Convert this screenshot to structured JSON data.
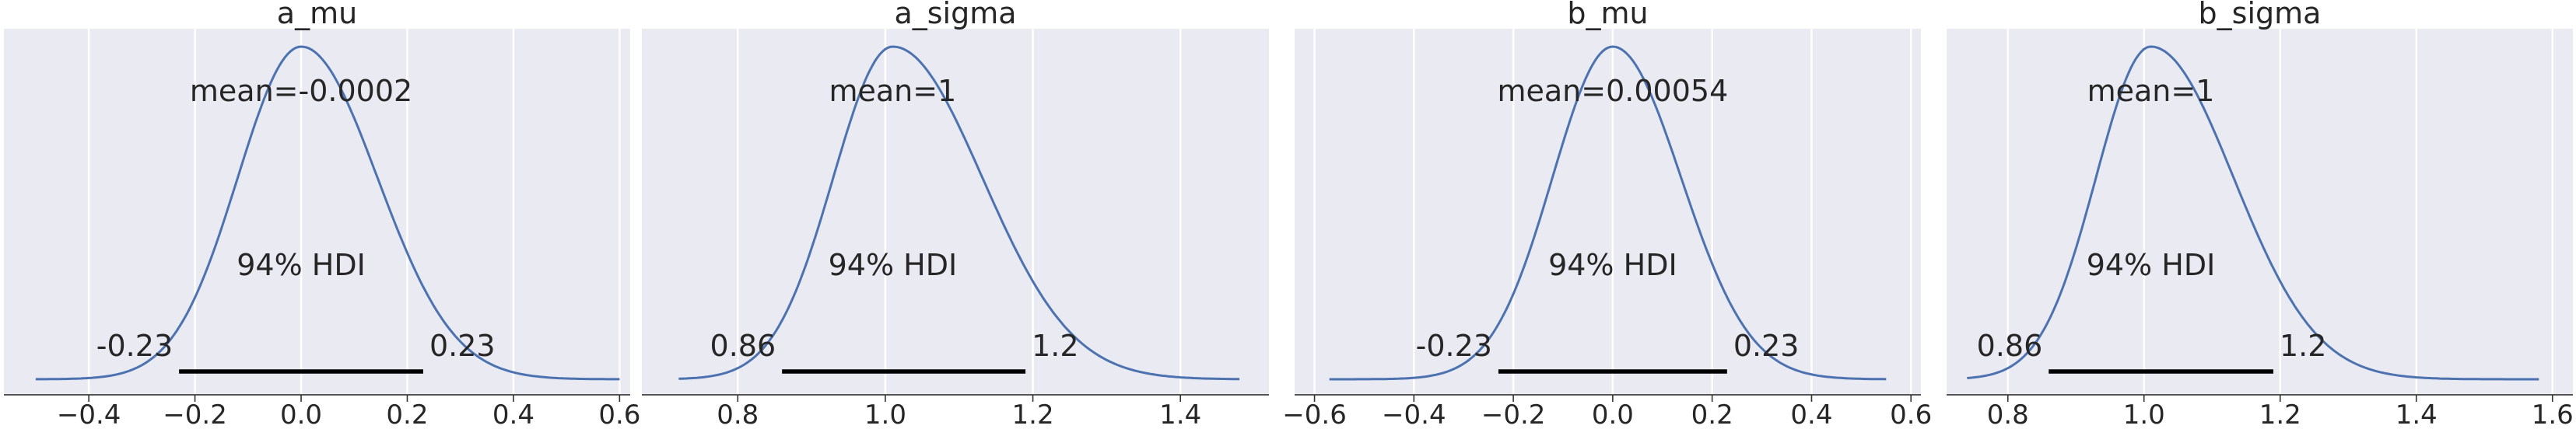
{
  "chart_data": [
    {
      "type": "line",
      "title": "a_mu",
      "line_color": "#4c72b0",
      "xlim": [
        -0.56,
        0.62
      ],
      "ylim": [
        0,
        1.05
      ],
      "xticks": [
        -0.4,
        -0.2,
        0.0,
        0.2,
        0.4,
        0.6
      ],
      "xtick_labels": [
        "−0.4",
        "−0.2",
        "0.0",
        "0.2",
        "0.4",
        "0.6"
      ],
      "kde": {
        "support": [
          -0.5,
          0.6
        ],
        "mean": 0.0,
        "sd": 0.125,
        "skew": 0.15
      },
      "mean_label": "mean=-0.0002",
      "hdi_label": "94% HDI",
      "hdi": [
        -0.23,
        0.23
      ],
      "hdi_labels": [
        "-0.23",
        "0.23"
      ]
    },
    {
      "type": "line",
      "title": "a_sigma",
      "line_color": "#4c72b0",
      "xlim": [
        0.67,
        1.52
      ],
      "ylim": [
        0,
        1.05
      ],
      "xticks": [
        0.8,
        1.0,
        1.2,
        1.4
      ],
      "xtick_labels": [
        "0.8",
        "1.0",
        "1.2",
        "1.4"
      ],
      "kde": {
        "support": [
          0.72,
          1.48
        ],
        "mean": 1.01,
        "sd": 0.09,
        "skew": 0.35
      },
      "mean_label": "mean=1",
      "hdi_label": "94% HDI",
      "hdi": [
        0.86,
        1.19
      ],
      "hdi_labels": [
        "0.86",
        "1.2"
      ]
    },
    {
      "type": "line",
      "title": "b_mu",
      "line_color": "#4c72b0",
      "xlim": [
        -0.64,
        0.62
      ],
      "ylim": [
        0,
        1.05
      ],
      "xticks": [
        -0.6,
        -0.4,
        -0.2,
        0.0,
        0.2,
        0.4,
        0.6
      ],
      "xtick_labels": [
        "−0.6",
        "−0.4",
        "−0.2",
        "0.0",
        "0.2",
        "0.4",
        "0.6"
      ],
      "kde": {
        "support": [
          -0.57,
          0.55
        ],
        "mean": 0.0,
        "sd": 0.125,
        "skew": 0.1
      },
      "mean_label": "mean=0.00054",
      "hdi_label": "94% HDI",
      "hdi": [
        -0.23,
        0.23
      ],
      "hdi_labels": [
        "-0.23",
        "0.23"
      ]
    },
    {
      "type": "line",
      "title": "b_sigma",
      "line_color": "#4c72b0",
      "xlim": [
        0.71,
        1.63
      ],
      "ylim": [
        0,
        1.05
      ],
      "xticks": [
        0.8,
        1.0,
        1.2,
        1.4,
        1.6
      ],
      "xtick_labels": [
        "0.8",
        "1.0",
        "1.2",
        "1.4",
        "1.6"
      ],
      "kde": {
        "support": [
          0.74,
          1.58
        ],
        "mean": 1.01,
        "sd": 0.09,
        "skew": 0.35
      },
      "mean_label": "mean=1",
      "hdi_label": "94% HDI",
      "hdi": [
        0.86,
        1.19
      ],
      "hdi_labels": [
        "0.86",
        "1.2"
      ]
    }
  ]
}
